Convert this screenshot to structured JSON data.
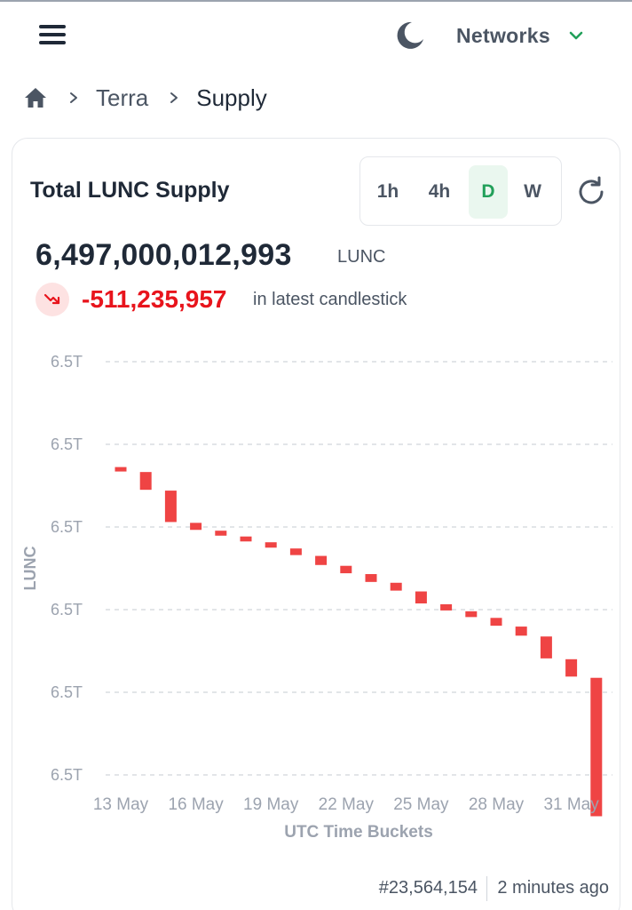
{
  "header": {
    "menu_icon": "hamburger-menu-icon",
    "theme_icon": "moon-icon",
    "networks_label": "Networks",
    "networks_chevron_icon": "chevron-down-icon",
    "accent_color": "#22a05a"
  },
  "breadcrumb": {
    "home_icon": "home-icon",
    "items": [
      "Terra",
      "Supply"
    ]
  },
  "card": {
    "title": "Total LUNC Supply",
    "intervals": [
      {
        "label": "1h",
        "active": false
      },
      {
        "label": "4h",
        "active": false
      },
      {
        "label": "D",
        "active": true
      },
      {
        "label": "W",
        "active": false
      }
    ],
    "refresh_icon": "refresh-icon",
    "supply_value": "6,497,000,012,993",
    "supply_unit": "LUNC",
    "delta_icon": "trending-down-icon",
    "delta_value": "-511,235,957",
    "delta_caption": "in latest candlestick",
    "negative_color": "#e8141c"
  },
  "chart_data": {
    "type": "candlestick",
    "xlabel": "UTC Time Buckets",
    "ylabel": "LUNC",
    "y_ticks": [
      "6.5T",
      "6.5T",
      "6.5T",
      "6.5T",
      "6.5T",
      "6.5T"
    ],
    "x_ticks": [
      "13 May",
      "16 May",
      "19 May",
      "22 May",
      "25 May",
      "28 May",
      "31 May"
    ],
    "x_tick_positions": [
      0,
      3,
      6,
      9,
      12,
      15,
      18
    ],
    "grid": true,
    "relative_scale": {
      "top": 1.0,
      "bottom": 0.0,
      "note": "tick labels all read 6.5T"
    },
    "candles": [
      {
        "open": 0.745,
        "close": 0.735
      },
      {
        "open": 0.733,
        "close": 0.69
      },
      {
        "open": 0.688,
        "close": 0.612
      },
      {
        "open": 0.61,
        "close": 0.593
      },
      {
        "open": 0.591,
        "close": 0.579
      },
      {
        "open": 0.577,
        "close": 0.565
      },
      {
        "open": 0.563,
        "close": 0.55
      },
      {
        "open": 0.548,
        "close": 0.532
      },
      {
        "open": 0.53,
        "close": 0.508
      },
      {
        "open": 0.506,
        "close": 0.488
      },
      {
        "open": 0.486,
        "close": 0.467
      },
      {
        "open": 0.465,
        "close": 0.446
      },
      {
        "open": 0.444,
        "close": 0.415
      },
      {
        "open": 0.413,
        "close": 0.398
      },
      {
        "open": 0.396,
        "close": 0.382
      },
      {
        "open": 0.38,
        "close": 0.361
      },
      {
        "open": 0.359,
        "close": 0.337
      },
      {
        "open": 0.335,
        "close": 0.282
      },
      {
        "open": 0.28,
        "close": 0.238
      },
      {
        "open": 0.235,
        "close": -0.1
      }
    ],
    "candle_color": "#ef4444"
  },
  "footer": {
    "block_number": "#23,564,154",
    "updated": "2 minutes ago"
  }
}
